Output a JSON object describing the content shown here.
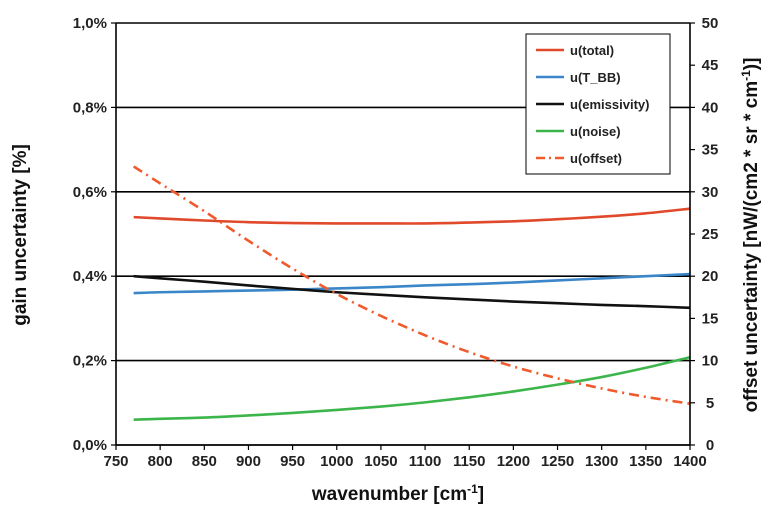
{
  "chart_data": {
    "type": "line",
    "xlabel_main": "wavenumber [cm",
    "xlabel_sup": "-1",
    "xlabel_end": "]",
    "ylabel_left": "gain uncertainty [%]",
    "ylabel_right_main": "offset uncertainty [nW/(cm2 * sr * cm",
    "ylabel_right_sup": "-1",
    "ylabel_right_end": ")]",
    "xlim": [
      750,
      1400
    ],
    "ylim_left": [
      0,
      1.0
    ],
    "ylim_right": [
      0,
      50
    ],
    "grid": "horizontal",
    "legend_position": "top-right",
    "x_ticks": [
      "750",
      "800",
      "850",
      "900",
      "950",
      "1000",
      "1050",
      "1100",
      "1150",
      "1200",
      "1250",
      "1300",
      "1350",
      "1400"
    ],
    "y_left_ticks": [
      "0,0%",
      "0,2%",
      "0,4%",
      "0,6%",
      "0,8%",
      "1,0%"
    ],
    "y_right_ticks": [
      "0",
      "5",
      "10",
      "15",
      "20",
      "25",
      "30",
      "35",
      "40",
      "45",
      "50"
    ],
    "x": [
      770,
      800,
      850,
      900,
      950,
      1000,
      1050,
      1100,
      1150,
      1200,
      1250,
      1300,
      1350,
      1400
    ],
    "series": [
      {
        "name": "u(total)",
        "color": "#e0492a",
        "dash": "solid",
        "axis": "left",
        "values": [
          0.54,
          0.537,
          0.532,
          0.528,
          0.526,
          0.525,
          0.525,
          0.525,
          0.527,
          0.53,
          0.535,
          0.541,
          0.549,
          0.56
        ]
      },
      {
        "name": "u(T_BB)",
        "color": "#3a86c8",
        "dash": "solid",
        "axis": "left",
        "values": [
          0.36,
          0.362,
          0.364,
          0.366,
          0.368,
          0.371,
          0.374,
          0.378,
          0.381,
          0.385,
          0.39,
          0.395,
          0.4,
          0.405
        ]
      },
      {
        "name": "u(emissivity)",
        "color": "#111111",
        "dash": "solid",
        "axis": "left",
        "values": [
          0.4,
          0.395,
          0.387,
          0.378,
          0.37,
          0.362,
          0.356,
          0.35,
          0.345,
          0.34,
          0.336,
          0.332,
          0.329,
          0.325
        ]
      },
      {
        "name": "u(noise)",
        "color": "#3cb54a",
        "dash": "solid",
        "axis": "left",
        "values": [
          0.06,
          0.062,
          0.065,
          0.07,
          0.076,
          0.083,
          0.091,
          0.101,
          0.113,
          0.127,
          0.143,
          0.161,
          0.183,
          0.208
        ]
      },
      {
        "name": "u(offset)",
        "color": "#f05a2c",
        "dash": "dashdot",
        "axis": "right",
        "values": [
          33.0,
          31.0,
          27.7,
          24.2,
          20.9,
          17.9,
          15.3,
          13.0,
          11.0,
          9.3,
          7.9,
          6.7,
          5.7,
          4.9
        ]
      }
    ]
  }
}
